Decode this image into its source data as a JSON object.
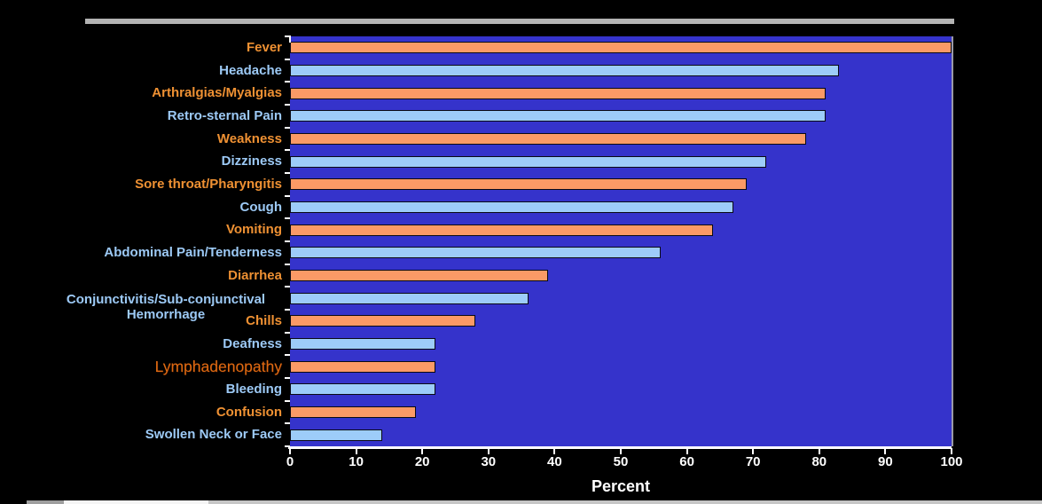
{
  "chart_data": {
    "type": "bar",
    "orientation": "horizontal",
    "title": "",
    "xlabel": "Percent",
    "xlim": [
      0,
      100
    ],
    "xticks": [
      0,
      10,
      20,
      30,
      40,
      50,
      60,
      70,
      80,
      90,
      100
    ],
    "grid": false,
    "legend": "none",
    "rows": [
      {
        "label": "Fever",
        "value": 100,
        "series": "orange"
      },
      {
        "label": "Headache",
        "value": 83,
        "series": "blue"
      },
      {
        "label": "Arthralgias/Myalgias",
        "value": 81,
        "series": "orange"
      },
      {
        "label": "Retro-sternal Pain",
        "value": 81,
        "series": "blue"
      },
      {
        "label": "Weakness",
        "value": 78,
        "series": "orange"
      },
      {
        "label": "Dizziness",
        "value": 72,
        "series": "blue"
      },
      {
        "label": "Sore throat/Pharyngitis",
        "value": 69,
        "series": "orange"
      },
      {
        "label": "Cough",
        "value": 67,
        "series": "blue"
      },
      {
        "label": "Vomiting",
        "value": 64,
        "series": "orange"
      },
      {
        "label": "Abdominal Pain/Tenderness",
        "value": 56,
        "series": "blue"
      },
      {
        "label": "Diarrhea",
        "value": 39,
        "series": "orange"
      },
      {
        "label": "Conjunctivitis/Sub-conjunctival Hemorrhage",
        "value": 36,
        "series": "blue",
        "wrap": true
      },
      {
        "label": "Chills",
        "value": 28,
        "series": "orange"
      },
      {
        "label": "Deafness",
        "value": 22,
        "series": "blue"
      },
      {
        "label": "Lymphadenopathy",
        "value": 22,
        "series": "orange",
        "thin": true
      },
      {
        "label": "Bleeding",
        "value": 22,
        "series": "blue"
      },
      {
        "label": "Confusion",
        "value": 19,
        "series": "orange"
      },
      {
        "label": "Swollen Neck or Face",
        "value": 14,
        "series": "blue"
      }
    ],
    "colors": {
      "background": "#000000",
      "plot_background": "#3533CB",
      "bar_orange": "#FB9A66",
      "bar_blue": "#9DCCF9",
      "label_orange": "#EF9133",
      "label_blue": "#9DCAF6",
      "label_lymphadenopathy": "#DE6A12",
      "axis": "#FFFFFF",
      "top_rule_gray": "#B3B3B3"
    }
  }
}
